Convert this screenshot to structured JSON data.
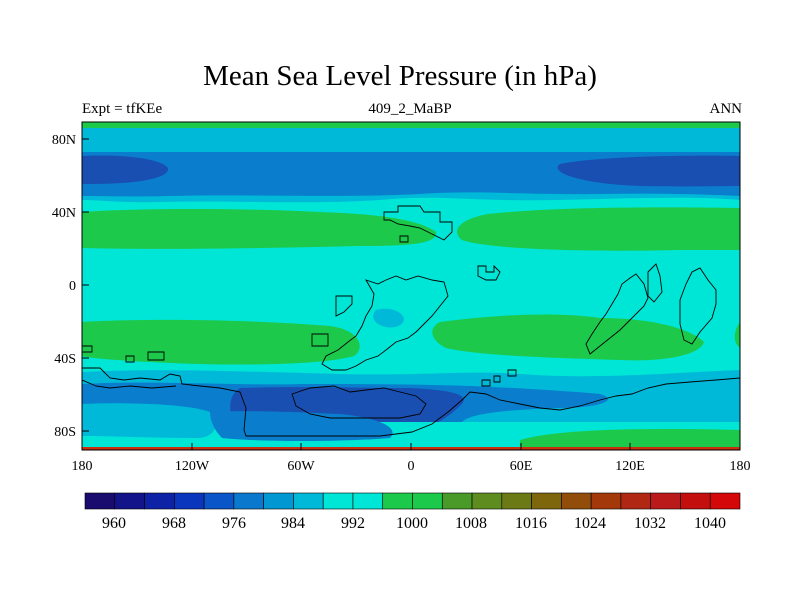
{
  "title": "Mean Sea Level Pressure (in hPa)",
  "subtitle_left": "Expt = tfKEe",
  "subtitle_center": "409_2_MaBP",
  "subtitle_right": "ANN",
  "colors": {
    "band_1000_1008": "#00e6d6",
    "band_1008_1012": "#1dc94b",
    "band_992_1000": "#00b9d9",
    "band_984_992": "#0a7dcc",
    "band_976_984": "#1a4fb2",
    "band_968_976": "#0a2a95",
    "band_above_1024": "#c83010",
    "coastline": "#000000"
  },
  "chart_data": {
    "type": "filled-contour map",
    "variable": "Mean Sea Level Pressure (in hPa)",
    "experiment": "tfKEe",
    "period": "409_2_MaBP",
    "season": "ANN",
    "x_ticks": [
      "180",
      "120W",
      "60W",
      "0",
      "60E",
      "120E",
      "180"
    ],
    "y_ticks": [
      "80N",
      "40N",
      "0",
      "40S",
      "80S"
    ],
    "x_range": [
      -180,
      180
    ],
    "y_range": [
      -90,
      90
    ],
    "colorbar": {
      "labels": [
        "960",
        "968",
        "976",
        "984",
        "992",
        "1000",
        "1008",
        "1016",
        "1024",
        "1032",
        "1040"
      ],
      "colors": [
        "#1a0c6e",
        "#13138a",
        "#0d22a5",
        "#0a36be",
        "#0a55c8",
        "#0a78cc",
        "#0097d2",
        "#00b9d9",
        "#00e6d6",
        "#00e6d6",
        "#1dc94b",
        "#1dc94b",
        "#4a9a2a",
        "#5f8c1e",
        "#6b7a14",
        "#7e660d",
        "#924d0a",
        "#a3390a",
        "#b02814",
        "#bb1a1a",
        "#c40f0f",
        "#d40808"
      ]
    }
  }
}
